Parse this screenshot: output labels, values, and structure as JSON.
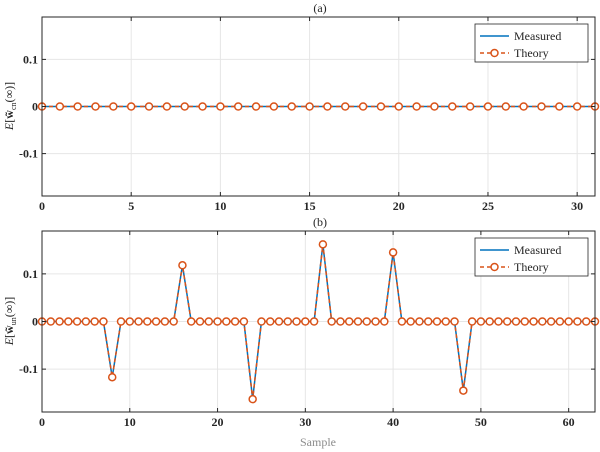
{
  "figure": {
    "xlabel": "Sample"
  },
  "colors": {
    "measured": "#0072BD",
    "theory": "#D95319",
    "grid": "#e6e6e6",
    "axis": "#262626"
  },
  "chart_data": [
    {
      "type": "line",
      "title": "(a)",
      "xlabel": "",
      "ylabel_parts": [
        "E",
        "[",
        "w",
        "̃",
        "cn",
        "(∞)]"
      ],
      "xlim": [
        0,
        31
      ],
      "ylim": [
        -0.19,
        0.19
      ],
      "xticks": [
        0,
        5,
        10,
        15,
        20,
        25,
        30
      ],
      "yticks": [
        -0.1,
        0,
        0.1
      ],
      "ytick_labels": [
        "-0.1",
        "0",
        "0.1"
      ],
      "grid": true,
      "legend_position": "top-right",
      "series": [
        {
          "name": "Measured",
          "style": "solid-line",
          "x": [
            0,
            1,
            2,
            3,
            4,
            5,
            6,
            7,
            8,
            9,
            10,
            11,
            12,
            13,
            14,
            15,
            16,
            17,
            18,
            19,
            20,
            21,
            22,
            23,
            24,
            25,
            26,
            27,
            28,
            29,
            30,
            31
          ],
          "y": [
            0,
            0,
            0,
            0,
            0,
            0,
            0,
            0,
            0,
            0,
            0,
            0,
            0,
            0,
            0,
            0,
            0,
            0,
            0,
            0,
            0,
            0,
            0,
            0,
            0,
            0,
            0,
            0,
            0,
            0,
            0,
            0
          ]
        },
        {
          "name": "Theory",
          "style": "dashed-line-circle-markers",
          "x": [
            0,
            1,
            2,
            3,
            4,
            5,
            6,
            7,
            8,
            9,
            10,
            11,
            12,
            13,
            14,
            15,
            16,
            17,
            18,
            19,
            20,
            21,
            22,
            23,
            24,
            25,
            26,
            27,
            28,
            29,
            30,
            31
          ],
          "y": [
            0,
            0,
            0,
            0,
            0,
            0,
            0,
            0,
            0,
            0,
            0,
            0,
            0,
            0,
            0,
            0,
            0,
            0,
            0,
            0,
            0,
            0,
            0,
            0,
            0,
            0,
            0,
            0,
            0,
            0,
            0,
            0
          ]
        }
      ]
    },
    {
      "type": "line",
      "title": "(b)",
      "xlabel": "Sample",
      "ylabel_parts": [
        "E",
        "[",
        "w",
        "̃",
        "un",
        "(∞)]"
      ],
      "xlim": [
        0,
        63
      ],
      "ylim": [
        -0.19,
        0.19
      ],
      "xticks": [
        0,
        10,
        20,
        30,
        40,
        50,
        60
      ],
      "yticks": [
        -0.1,
        0,
        0.1
      ],
      "ytick_labels": [
        "-0.1",
        "0",
        "0.1"
      ],
      "grid": true,
      "legend_position": "top-right",
      "series": [
        {
          "name": "Measured",
          "style": "solid-line",
          "x": [
            0,
            1,
            2,
            3,
            4,
            5,
            6,
            7,
            8,
            9,
            10,
            11,
            12,
            13,
            14,
            15,
            16,
            17,
            18,
            19,
            20,
            21,
            22,
            23,
            24,
            25,
            26,
            27,
            28,
            29,
            30,
            31,
            32,
            33,
            34,
            35,
            36,
            37,
            38,
            39,
            40,
            41,
            42,
            43,
            44,
            45,
            46,
            47,
            48,
            49,
            50,
            51,
            52,
            53,
            54,
            55,
            56,
            57,
            58,
            59,
            60,
            61,
            62,
            63
          ],
          "y": [
            0,
            0,
            0,
            0,
            0,
            0,
            0,
            0,
            -0.117,
            0,
            0,
            0,
            0,
            0,
            0,
            0,
            0.118,
            0,
            0,
            0,
            0,
            0,
            0,
            0,
            -0.163,
            0,
            0,
            0,
            0,
            0,
            0,
            0,
            0.162,
            0,
            0,
            0,
            0,
            0,
            0,
            0,
            0.145,
            0,
            0,
            0,
            0,
            0,
            0,
            0,
            -0.145,
            0,
            0,
            0,
            0,
            0,
            0,
            0,
            0,
            0,
            0,
            0,
            0,
            0,
            0,
            0
          ]
        },
        {
          "name": "Theory",
          "style": "dashed-line-circle-markers",
          "x": [
            0,
            1,
            2,
            3,
            4,
            5,
            6,
            7,
            8,
            9,
            10,
            11,
            12,
            13,
            14,
            15,
            16,
            17,
            18,
            19,
            20,
            21,
            22,
            23,
            24,
            25,
            26,
            27,
            28,
            29,
            30,
            31,
            32,
            33,
            34,
            35,
            36,
            37,
            38,
            39,
            40,
            41,
            42,
            43,
            44,
            45,
            46,
            47,
            48,
            49,
            50,
            51,
            52,
            53,
            54,
            55,
            56,
            57,
            58,
            59,
            60,
            61,
            62,
            63
          ],
          "y": [
            0,
            0,
            0,
            0,
            0,
            0,
            0,
            0,
            -0.117,
            0,
            0,
            0,
            0,
            0,
            0,
            0,
            0.118,
            0,
            0,
            0,
            0,
            0,
            0,
            0,
            -0.163,
            0,
            0,
            0,
            0,
            0,
            0,
            0,
            0.162,
            0,
            0,
            0,
            0,
            0,
            0,
            0,
            0.145,
            0,
            0,
            0,
            0,
            0,
            0,
            0,
            -0.145,
            0,
            0,
            0,
            0,
            0,
            0,
            0,
            0,
            0,
            0,
            0,
            0,
            0,
            0,
            0
          ]
        }
      ]
    }
  ]
}
